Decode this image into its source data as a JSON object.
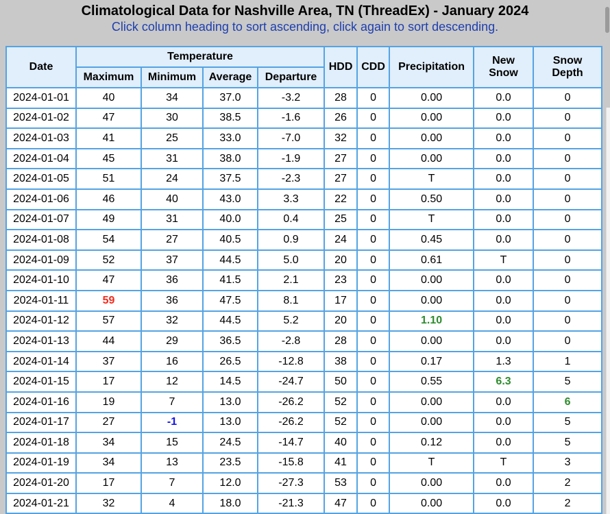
{
  "page": {
    "title": "Climatological Data for Nashville Area, TN (ThreadEx) - January 2024",
    "subtitle": "Click column heading to sort ascending, click again to sort descending."
  },
  "colors": {
    "page_background": "#c9c9c9",
    "table_border": "#54a3e3",
    "header_background": "#e1eefb",
    "subtitle_text": "#1f3fae",
    "record_high": "#f22b1c",
    "record_low": "#1515e6",
    "record_precip": "#2e8b2e"
  },
  "table": {
    "header": {
      "date": "Date",
      "temperature": "Temperature",
      "maximum": "Maximum",
      "minimum": "Minimum",
      "average": "Average",
      "departure": "Departure",
      "hdd": "HDD",
      "cdd": "CDD",
      "precipitation": "Precipitation",
      "new_snow": "New\nSnow",
      "snow_depth": "Snow\nDepth"
    },
    "rows": [
      [
        "2024-01-01",
        "40",
        "34",
        "37.0",
        "-3.2",
        "28",
        "0",
        "0.00",
        "0.0",
        "0"
      ],
      [
        "2024-01-02",
        "47",
        "30",
        "38.5",
        "-1.6",
        "26",
        "0",
        "0.00",
        "0.0",
        "0"
      ],
      [
        "2024-01-03",
        "41",
        "25",
        "33.0",
        "-7.0",
        "32",
        "0",
        "0.00",
        "0.0",
        "0"
      ],
      [
        "2024-01-04",
        "45",
        "31",
        "38.0",
        "-1.9",
        "27",
        "0",
        "0.00",
        "0.0",
        "0"
      ],
      [
        "2024-01-05",
        "51",
        "24",
        "37.5",
        "-2.3",
        "27",
        "0",
        "T",
        "0.0",
        "0"
      ],
      [
        "2024-01-06",
        "46",
        "40",
        "43.0",
        "3.3",
        "22",
        "0",
        "0.50",
        "0.0",
        "0"
      ],
      [
        "2024-01-07",
        "49",
        "31",
        "40.0",
        "0.4",
        "25",
        "0",
        "T",
        "0.0",
        "0"
      ],
      [
        "2024-01-08",
        "54",
        "27",
        "40.5",
        "0.9",
        "24",
        "0",
        "0.45",
        "0.0",
        "0"
      ],
      [
        "2024-01-09",
        "52",
        "37",
        "44.5",
        "5.0",
        "20",
        "0",
        "0.61",
        "T",
        "0"
      ],
      [
        "2024-01-10",
        "47",
        "36",
        "41.5",
        "2.1",
        "23",
        "0",
        "0.00",
        "0.0",
        "0"
      ],
      [
        "2024-01-11",
        {
          "v": "59",
          "c": "record_high"
        },
        "36",
        "47.5",
        "8.1",
        "17",
        "0",
        "0.00",
        "0.0",
        "0"
      ],
      [
        "2024-01-12",
        "57",
        "32",
        "44.5",
        "5.2",
        "20",
        "0",
        {
          "v": "1.10",
          "c": "record_precip"
        },
        "0.0",
        "0"
      ],
      [
        "2024-01-13",
        "44",
        "29",
        "36.5",
        "-2.8",
        "28",
        "0",
        "0.00",
        "0.0",
        "0"
      ],
      [
        "2024-01-14",
        "37",
        "16",
        "26.5",
        "-12.8",
        "38",
        "0",
        "0.17",
        "1.3",
        "1"
      ],
      [
        "2024-01-15",
        "17",
        "12",
        "14.5",
        "-24.7",
        "50",
        "0",
        "0.55",
        {
          "v": "6.3",
          "c": "record_precip"
        },
        "5"
      ],
      [
        "2024-01-16",
        "19",
        "7",
        "13.0",
        "-26.2",
        "52",
        "0",
        "0.00",
        "0.0",
        {
          "v": "6",
          "c": "record_precip"
        }
      ],
      [
        "2024-01-17",
        "27",
        {
          "v": "-1",
          "c": "record_low"
        },
        "13.0",
        "-26.2",
        "52",
        "0",
        "0.00",
        "0.0",
        "5"
      ],
      [
        "2024-01-18",
        "34",
        "15",
        "24.5",
        "-14.7",
        "40",
        "0",
        "0.12",
        "0.0",
        "5"
      ],
      [
        "2024-01-19",
        "34",
        "13",
        "23.5",
        "-15.8",
        "41",
        "0",
        "T",
        "T",
        "3"
      ],
      [
        "2024-01-20",
        "17",
        "7",
        "12.0",
        "-27.3",
        "53",
        "0",
        "0.00",
        "0.0",
        "2"
      ],
      [
        "2024-01-21",
        "32",
        "4",
        "18.0",
        "-21.3",
        "47",
        "0",
        "0.00",
        "0.0",
        "2"
      ]
    ]
  }
}
